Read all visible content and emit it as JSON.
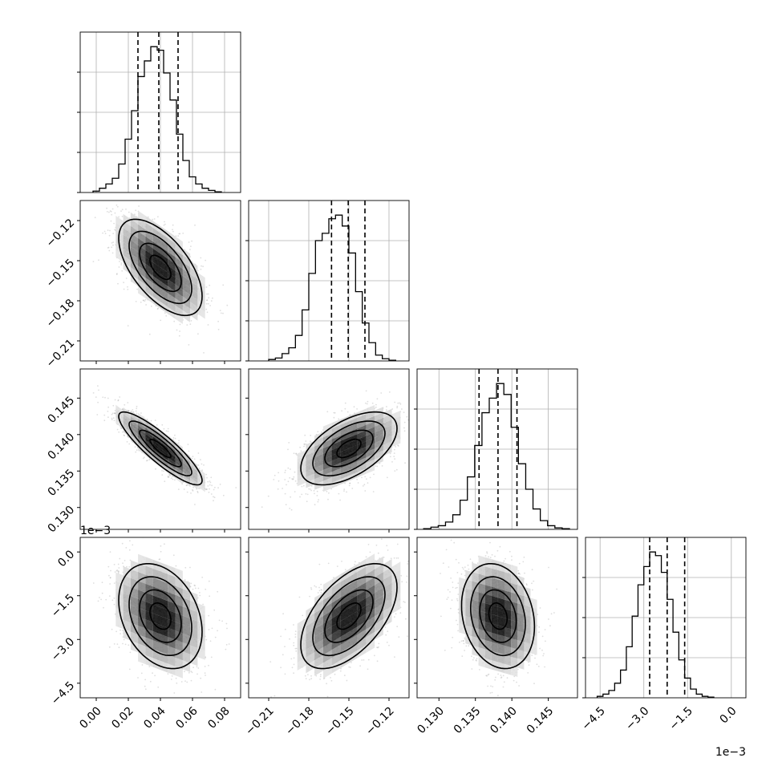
{
  "chart_data": {
    "type": "corner",
    "parameters": 4,
    "grid": true,
    "colors": {
      "line": "#000000",
      "grid": "#b0b0b0",
      "frame": "#000000"
    },
    "ranges": [
      [
        -0.01,
        0.09
      ],
      [
        -0.225,
        -0.105
      ],
      [
        0.127,
        0.149
      ],
      [
        -0.005,
        0.0005
      ]
    ],
    "ticks": [
      {
        "values": [
          0.0,
          0.02,
          0.04,
          0.06,
          0.08
        ],
        "labels": [
          "0.00",
          "0.02",
          "0.04",
          "0.06",
          "0.08"
        ]
      },
      {
        "values": [
          -0.21,
          -0.18,
          -0.15,
          -0.12
        ],
        "labels": [
          "−0.21",
          "−0.18",
          "−0.15",
          "−0.12"
        ]
      },
      {
        "values": [
          0.13,
          0.135,
          0.14,
          0.145
        ],
        "labels": [
          "0.130",
          "0.135",
          "0.140",
          "0.145"
        ]
      },
      {
        "values": [
          -0.0045,
          -0.003,
          -0.0015,
          0.0
        ],
        "labels": [
          "−4.5",
          "−3.0",
          "−1.5",
          "0.0"
        ]
      }
    ],
    "offset_text": "1e−3",
    "quantiles": [
      [
        0.026,
        0.039,
        0.051
      ],
      [
        -0.163,
        -0.1505,
        -0.138
      ],
      [
        0.1355,
        0.1381,
        0.1407
      ],
      [
        -0.0028,
        -0.0022,
        -0.0016
      ]
    ],
    "histograms": [
      {
        "edges_start": -0.002,
        "bin_width": 0.004,
        "counts": [
          2,
          6,
          12,
          20,
          40,
          75,
          115,
          163,
          185,
          205,
          200,
          168,
          130,
          82,
          45,
          22,
          12,
          6,
          3,
          1
        ]
      },
      {
        "edges_start": -0.21,
        "bin_width": 0.005,
        "counts": [
          2,
          4,
          10,
          18,
          35,
          70,
          120,
          165,
          175,
          195,
          200,
          185,
          148,
          95,
          52,
          25,
          8,
          3,
          1
        ]
      },
      {
        "edges_start": 0.1279,
        "bin_width": 0.001,
        "counts": [
          1,
          3,
          5,
          10,
          20,
          40,
          72,
          115,
          160,
          180,
          200,
          185,
          140,
          90,
          55,
          28,
          12,
          5,
          2,
          1
        ]
      },
      {
        "edges_start": -0.0046,
        "bin_width": 0.0002,
        "counts": [
          2,
          5,
          10,
          20,
          38,
          70,
          112,
          155,
          180,
          200,
          195,
          172,
          135,
          90,
          52,
          27,
          12,
          5,
          2,
          1
        ]
      }
    ],
    "pairs": [
      {
        "row": 1,
        "col": 0,
        "mean": [
          0.04,
          -0.155
        ],
        "sd": [
          0.013,
          0.018
        ],
        "corr": -0.6
      },
      {
        "row": 2,
        "col": 0,
        "mean": [
          0.04,
          0.1381
        ],
        "sd": [
          0.013,
          0.0025
        ],
        "corr": -0.88
      },
      {
        "row": 2,
        "col": 1,
        "mean": [
          -0.15,
          0.1381
        ],
        "sd": [
          0.018,
          0.0025
        ],
        "corr": 0.55
      },
      {
        "row": 3,
        "col": 0,
        "mean": [
          0.04,
          -0.0022
        ],
        "sd": [
          0.013,
          0.0009
        ],
        "corr": -0.3
      },
      {
        "row": 3,
        "col": 1,
        "mean": [
          -0.15,
          -0.0022
        ],
        "sd": [
          0.018,
          0.0009
        ],
        "corr": 0.55
      },
      {
        "row": 3,
        "col": 2,
        "mean": [
          0.1381,
          -0.0022
        ],
        "sd": [
          0.0025,
          0.0009
        ],
        "corr": -0.2
      }
    ]
  }
}
